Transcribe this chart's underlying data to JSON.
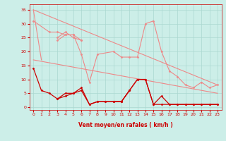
{
  "background_color": "#cceee8",
  "grid_color": "#aad8d0",
  "xlabel": "Vent moyen/en rafales ( km/h )",
  "xlabel_color": "#cc0000",
  "tick_color": "#cc0000",
  "ylim": [
    -1,
    37
  ],
  "xlim": [
    -0.5,
    23.5
  ],
  "yticks": [
    0,
    5,
    10,
    15,
    20,
    25,
    30,
    35
  ],
  "xticks": [
    0,
    1,
    2,
    3,
    4,
    5,
    6,
    7,
    8,
    9,
    10,
    11,
    12,
    13,
    14,
    15,
    16,
    17,
    18,
    19,
    20,
    21,
    22,
    23
  ],
  "arrow_symbols": [
    "↑",
    "↑",
    "↑",
    "↗",
    "↖",
    "↖",
    "↓",
    "↓",
    "↓",
    "↘",
    "»",
    "↘",
    "↙",
    "↙",
    "↙",
    "↓",
    "↓",
    "↓",
    "↓",
    "↓",
    "↓",
    "↓",
    "↓",
    "↓"
  ],
  "series_light": [
    {
      "y": [
        35,
        17,
        null,
        null,
        null,
        null,
        null,
        null,
        null,
        null,
        null,
        null,
        null,
        null,
        null,
        null,
        null,
        null,
        null,
        null,
        null,
        null,
        null,
        null
      ],
      "color": "#ee8888",
      "linewidth": 0.8,
      "marker": null,
      "connect_all": false
    },
    {
      "y": [
        31,
        null,
        27,
        27,
        26,
        26,
        19,
        9,
        19,
        null,
        20,
        18,
        18,
        18,
        30,
        31,
        20,
        13,
        11,
        8,
        7,
        9,
        7,
        8
      ],
      "color": "#ee8888",
      "linewidth": 0.8,
      "marker": "D",
      "markersize": 1.5,
      "connect_all": true
    },
    {
      "y": [
        null,
        null,
        null,
        25,
        27,
        25,
        24,
        null,
        null,
        null,
        null,
        null,
        null,
        null,
        null,
        null,
        null,
        null,
        null,
        null,
        null,
        null,
        null,
        null
      ],
      "color": "#ee8888",
      "linewidth": 0.8,
      "marker": "D",
      "markersize": 1.5,
      "connect_all": false
    },
    {
      "y": [
        null,
        null,
        null,
        24,
        26,
        26,
        24,
        null,
        null,
        null,
        null,
        null,
        null,
        null,
        null,
        null,
        null,
        null,
        null,
        null,
        null,
        null,
        null,
        null
      ],
      "color": "#ee8888",
      "linewidth": 0.8,
      "marker": "D",
      "markersize": 1.5,
      "connect_all": false
    }
  ],
  "diag_lines": [
    {
      "x0": 0,
      "y0": 35,
      "x1": 23,
      "y1": 8,
      "color": "#ee8888",
      "linewidth": 0.8
    },
    {
      "x0": 0,
      "y0": 17,
      "x1": 23,
      "y1": 5,
      "color": "#ee8888",
      "linewidth": 0.8
    }
  ],
  "series_dark": [
    {
      "y": [
        14,
        6,
        5,
        3,
        4,
        5,
        6,
        1,
        2,
        2,
        2,
        2,
        6,
        10,
        10,
        1,
        4,
        1,
        1,
        1,
        1,
        1,
        1,
        1
      ],
      "color": "#cc0000",
      "linewidth": 0.9,
      "marker": "D",
      "markersize": 1.5,
      "connect_all": true
    },
    {
      "y": [
        null,
        null,
        null,
        3,
        5,
        5,
        7,
        1,
        2,
        2,
        2,
        2,
        6,
        10,
        10,
        1,
        1,
        1,
        1,
        1,
        1,
        1,
        1,
        1
      ],
      "color": "#cc0000",
      "linewidth": 0.9,
      "marker": "D",
      "markersize": 1.5,
      "connect_all": true
    },
    {
      "y": [
        null,
        null,
        null,
        null,
        null,
        null,
        null,
        null,
        null,
        null,
        2,
        2,
        6,
        null,
        null,
        null,
        null,
        null,
        null,
        null,
        null,
        null,
        null,
        null
      ],
      "color": "#cc0000",
      "linewidth": 0.9,
      "marker": "D",
      "markersize": 1.5,
      "connect_all": false
    }
  ]
}
